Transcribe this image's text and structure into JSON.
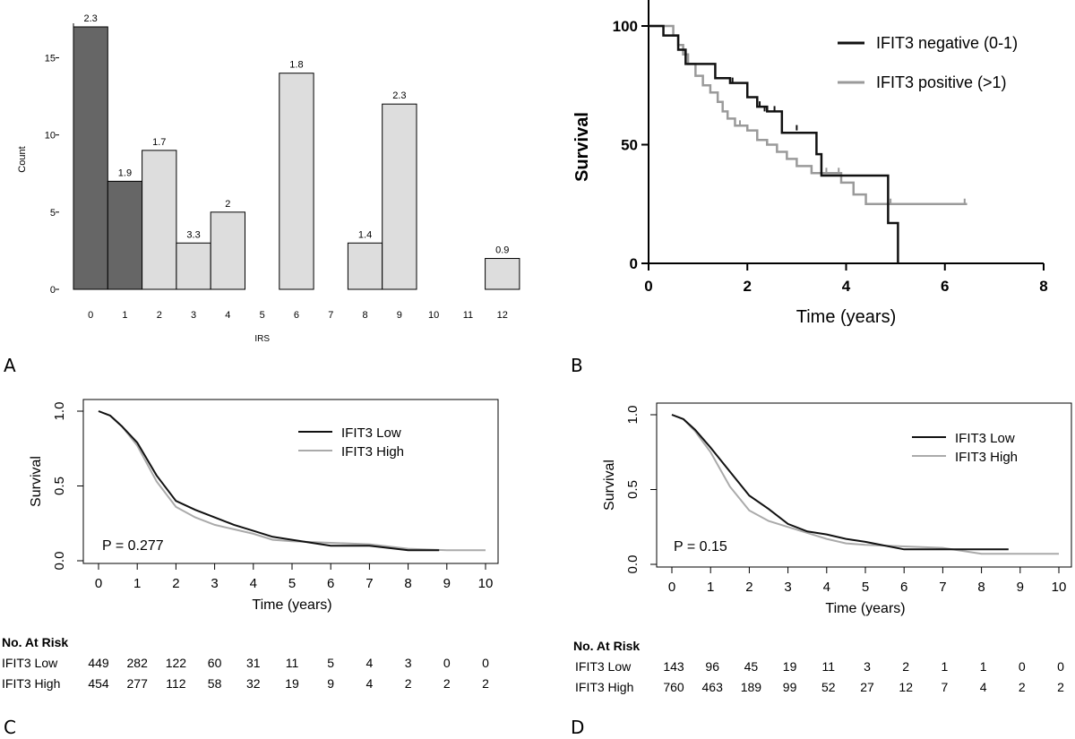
{
  "panel_labels": [
    "A",
    "B",
    "C",
    "D"
  ],
  "chart_data": [
    {
      "type": "bar",
      "panel": "A",
      "xlabel": "IRS",
      "ylabel": "Count",
      "ylim": [
        0,
        17
      ],
      "yticks": [
        0,
        5,
        10,
        15
      ],
      "categories": [
        "0",
        "1",
        "2",
        "3",
        "4",
        "5",
        "6",
        "7",
        "8",
        "9",
        "10",
        "11",
        "12"
      ],
      "values": [
        17,
        7,
        9,
        3,
        5,
        0,
        14,
        0,
        3,
        12,
        0,
        0,
        2
      ],
      "bar_labels": [
        "2.3",
        "1.9",
        "1.7",
        "3.3",
        "2",
        "",
        "1.8",
        "",
        "1.4",
        "2.3",
        "",
        "",
        "0.9"
      ],
      "bar_colors": [
        "#666666",
        "#666666",
        "#dddddd",
        "#dddddd",
        "#dddddd",
        "#dddddd",
        "#dddddd",
        "#dddddd",
        "#dddddd",
        "#dddddd",
        "#dddddd",
        "#dddddd",
        "#dddddd"
      ]
    },
    {
      "type": "line",
      "panel": "B",
      "xlabel": "Time (years)",
      "ylabel": "Survival",
      "xlim": [
        0,
        8
      ],
      "ylim": [
        0,
        100
      ],
      "xticks": [
        0,
        2,
        4,
        6,
        8
      ],
      "yticks": [
        0,
        50,
        100
      ],
      "legend": "top-right",
      "series": [
        {
          "name": "IFIT3 negative (0-1)",
          "color": "#111111",
          "steps": [
            [
              0,
              100
            ],
            [
              0.3,
              96
            ],
            [
              0.6,
              90
            ],
            [
              0.75,
              84
            ],
            [
              1.35,
              78
            ],
            [
              1.65,
              76
            ],
            [
              2.0,
              70
            ],
            [
              2.2,
              66
            ],
            [
              2.4,
              64
            ],
            [
              2.7,
              55
            ],
            [
              3.4,
              46
            ],
            [
              3.5,
              37
            ],
            [
              4.85,
              17
            ],
            [
              5.05,
              0
            ]
          ],
          "censors": [
            [
              1.7,
              76
            ],
            [
              2.25,
              66
            ],
            [
              2.35,
              64
            ],
            [
              2.55,
              64
            ],
            [
              3.0,
              56
            ]
          ]
        },
        {
          "name": "IFIT3 positive (>1)",
          "color": "#9a9a9a",
          "steps": [
            [
              0,
              100
            ],
            [
              0.5,
              96
            ],
            [
              0.6,
              92
            ],
            [
              0.7,
              88
            ],
            [
              0.8,
              84
            ],
            [
              0.95,
              79
            ],
            [
              1.1,
              75
            ],
            [
              1.25,
              72
            ],
            [
              1.4,
              68
            ],
            [
              1.5,
              64
            ],
            [
              1.6,
              61
            ],
            [
              1.75,
              58
            ],
            [
              2.0,
              56
            ],
            [
              2.2,
              52
            ],
            [
              2.4,
              50
            ],
            [
              2.6,
              47
            ],
            [
              2.8,
              44
            ],
            [
              3.0,
              41
            ],
            [
              3.3,
              38
            ],
            [
              3.9,
              34
            ],
            [
              4.15,
              29
            ],
            [
              4.4,
              25
            ],
            [
              6.45,
              25
            ]
          ],
          "censors": [
            [
              1.85,
              58
            ],
            [
              3.3,
              38
            ],
            [
              3.6,
              38
            ],
            [
              3.85,
              38
            ],
            [
              4.9,
              25
            ],
            [
              6.4,
              25
            ]
          ]
        }
      ]
    },
    {
      "type": "line",
      "panel": "C",
      "xlabel": "Time (years)",
      "ylabel": "Survival",
      "xlim": [
        0,
        10
      ],
      "ylim": [
        0,
        1
      ],
      "xticks": [
        0,
        1,
        2,
        3,
        4,
        5,
        6,
        7,
        8,
        9,
        10
      ],
      "yticks": [
        "0.0",
        "0.5",
        "1.0"
      ],
      "legend": "top-right",
      "annotation": "P = 0.277",
      "series": [
        {
          "name": "IFIT3 Low",
          "color": "#111111",
          "points": [
            [
              0,
              1.0
            ],
            [
              0.3,
              0.97
            ],
            [
              0.6,
              0.9
            ],
            [
              1,
              0.79
            ],
            [
              1.5,
              0.57
            ],
            [
              2,
              0.4
            ],
            [
              2.5,
              0.34
            ],
            [
              3,
              0.29
            ],
            [
              3.5,
              0.24
            ],
            [
              4,
              0.2
            ],
            [
              4.5,
              0.16
            ],
            [
              5,
              0.14
            ],
            [
              6,
              0.1
            ],
            [
              7,
              0.1
            ],
            [
              8,
              0.07
            ],
            [
              8.8,
              0.07
            ]
          ]
        },
        {
          "name": "IFIT3 High",
          "color": "#aaaaaa",
          "points": [
            [
              0,
              1.0
            ],
            [
              0.3,
              0.97
            ],
            [
              0.6,
              0.9
            ],
            [
              1,
              0.77
            ],
            [
              1.5,
              0.53
            ],
            [
              2,
              0.36
            ],
            [
              2.5,
              0.29
            ],
            [
              3,
              0.24
            ],
            [
              3.5,
              0.21
            ],
            [
              4,
              0.18
            ],
            [
              4.5,
              0.14
            ],
            [
              5,
              0.13
            ],
            [
              6,
              0.12
            ],
            [
              7,
              0.11
            ],
            [
              8,
              0.08
            ],
            [
              9,
              0.07
            ],
            [
              10,
              0.07
            ]
          ]
        }
      ],
      "at_risk": {
        "title": "No. At Risk",
        "rows": [
          {
            "label": "IFIT3 Low",
            "values": [
              "449",
              "282",
              "122",
              "60",
              "31",
              "11",
              "5",
              "4",
              "3",
              "0",
              "0"
            ]
          },
          {
            "label": "IFIT3 High",
            "values": [
              "454",
              "277",
              "112",
              "58",
              "32",
              "19",
              "9",
              "4",
              "2",
              "2",
              "2"
            ]
          }
        ]
      }
    },
    {
      "type": "line",
      "panel": "D",
      "xlabel": "Time (years)",
      "ylabel": "Survival",
      "xlim": [
        0,
        10
      ],
      "ylim": [
        0,
        1
      ],
      "xticks": [
        0,
        1,
        2,
        3,
        4,
        5,
        6,
        7,
        8,
        9,
        10
      ],
      "yticks": [
        "0.0",
        "0.5",
        "1.0"
      ],
      "legend": "top-right",
      "annotation": "P = 0.15",
      "series": [
        {
          "name": "IFIT3 Low",
          "color": "#111111",
          "points": [
            [
              0,
              1.0
            ],
            [
              0.3,
              0.97
            ],
            [
              0.6,
              0.9
            ],
            [
              1,
              0.78
            ],
            [
              1.5,
              0.62
            ],
            [
              2,
              0.46
            ],
            [
              2.5,
              0.37
            ],
            [
              3,
              0.27
            ],
            [
              3.5,
              0.22
            ],
            [
              4,
              0.2
            ],
            [
              4.5,
              0.17
            ],
            [
              5,
              0.15
            ],
            [
              6,
              0.1
            ],
            [
              7,
              0.1
            ],
            [
              8,
              0.1
            ],
            [
              8.7,
              0.1
            ]
          ]
        },
        {
          "name": "IFIT3 High",
          "color": "#aaaaaa",
          "points": [
            [
              0,
              1.0
            ],
            [
              0.3,
              0.97
            ],
            [
              0.6,
              0.89
            ],
            [
              1,
              0.75
            ],
            [
              1.5,
              0.52
            ],
            [
              2,
              0.36
            ],
            [
              2.5,
              0.29
            ],
            [
              3,
              0.25
            ],
            [
              3.5,
              0.21
            ],
            [
              4,
              0.17
            ],
            [
              4.5,
              0.14
            ],
            [
              5,
              0.13
            ],
            [
              6,
              0.12
            ],
            [
              7,
              0.11
            ],
            [
              8,
              0.07
            ],
            [
              9,
              0.07
            ],
            [
              10,
              0.07
            ]
          ]
        }
      ],
      "at_risk": {
        "title": "No. At Risk",
        "rows": [
          {
            "label": "IFIT3 Low",
            "values": [
              "143",
              "96",
              "45",
              "19",
              "11",
              "3",
              "2",
              "1",
              "1",
              "0",
              "0"
            ]
          },
          {
            "label": "IFIT3 High",
            "values": [
              "760",
              "463",
              "189",
              "99",
              "52",
              "27",
              "12",
              "7",
              "4",
              "2",
              "2"
            ]
          }
        ]
      }
    }
  ]
}
